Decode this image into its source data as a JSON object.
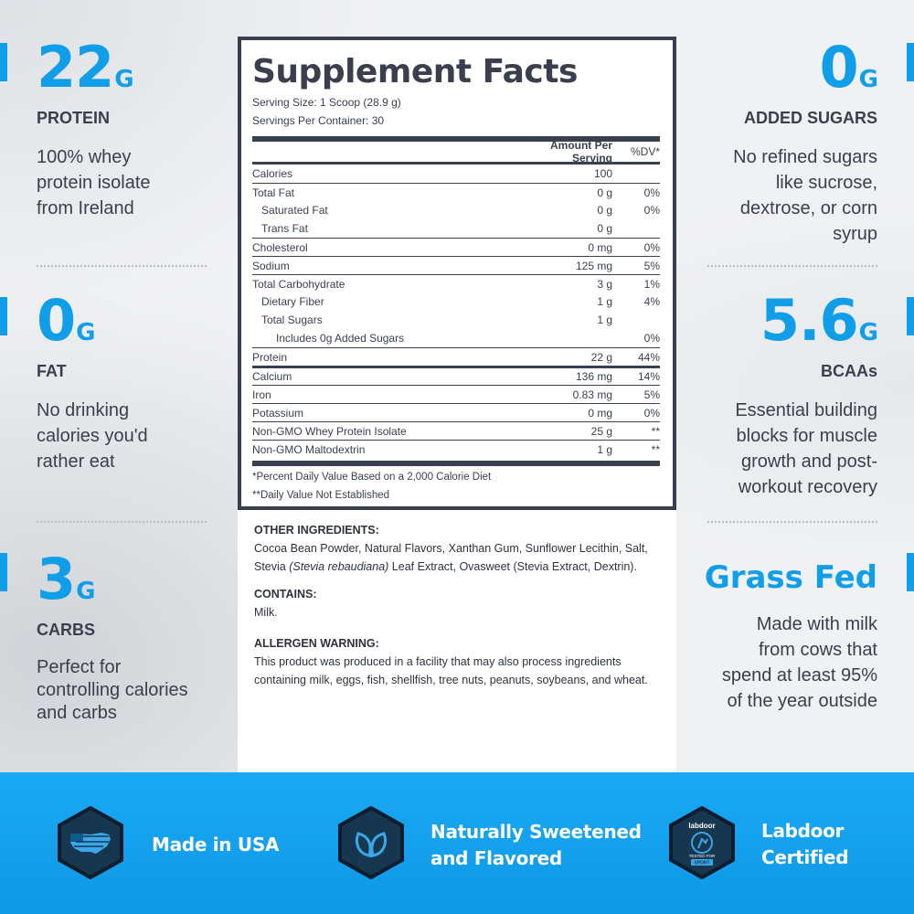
{
  "stats_left": [
    {
      "num": "22",
      "unit": "G",
      "label": "PROTEIN",
      "desc": [
        "100% whey",
        "protein isolate",
        "from Ireland"
      ]
    },
    {
      "num": "0",
      "unit": "G",
      "label": "FAT",
      "desc": [
        "No drinking",
        "calories you'd",
        "rather eat"
      ]
    },
    {
      "num": "3",
      "unit": "G",
      "label": "CARBS",
      "desc": [
        "Perfect for",
        "controlling calories",
        "and carbs"
      ]
    }
  ],
  "stats_right": [
    {
      "num": "0",
      "unit": "G",
      "label": "ADDED SUGARS",
      "desc": [
        "No refined sugars",
        "like sucrose,",
        "dextrose, or corn",
        "syrup"
      ]
    },
    {
      "num": "5.6",
      "unit": "G",
      "label": "BCAAs",
      "desc": [
        "Essential building",
        "blocks for muscle",
        "growth and post-",
        "workout recovery"
      ]
    },
    {
      "headline": "Grass Fed",
      "desc": [
        "Made with milk",
        "from cows that",
        "spend at least 95%",
        "of the year outside"
      ]
    }
  ],
  "facts": {
    "title": "Supplement Facts",
    "serving_size": "Serving Size: 1 Scoop (28.9 g)",
    "servings_per_container": "Servings Per Container: 30",
    "col_amount": "Amount Per Serving",
    "col_dv": "%DV*",
    "rows": [
      {
        "name": "Calories",
        "amount": "100",
        "dv": ""
      },
      {
        "name": "Total Fat",
        "amount": "0 g",
        "dv": "0%"
      },
      {
        "name": "Saturated Fat",
        "amount": "0 g",
        "dv": "0%"
      },
      {
        "name": "Trans Fat",
        "amount": "0 g",
        "dv": ""
      },
      {
        "name": "Cholesterol",
        "amount": "0 mg",
        "dv": "0%"
      },
      {
        "name": "Sodium",
        "amount": "125 mg",
        "dv": "5%"
      },
      {
        "name": "Total Carbohydrate",
        "amount": "3 g",
        "dv": "1%"
      },
      {
        "name": "Dietary Fiber",
        "amount": "1 g",
        "dv": "4%"
      },
      {
        "name": "Total Sugars",
        "amount": "1 g",
        "dv": ""
      },
      {
        "name": "Includes 0g Added Sugars",
        "amount": "",
        "dv": "0%"
      },
      {
        "name": "Protein",
        "amount": "22 g",
        "dv": "44%"
      },
      {
        "name": "Calcium",
        "amount": "136 mg",
        "dv": "14%"
      },
      {
        "name": "Iron",
        "amount": "0.83 mg",
        "dv": "5%"
      },
      {
        "name": "Potassium",
        "amount": "0 mg",
        "dv": "0%"
      },
      {
        "name": "Non-GMO Whey Protein Isolate",
        "amount": "25 g",
        "dv": "**"
      },
      {
        "name": "Non-GMO Maltodextrin",
        "amount": "1 g",
        "dv": "**"
      }
    ],
    "footnote_1": "*Percent Daily Value Based on a 2,000 Calorie Diet",
    "footnote_2": "**Daily Value Not Established"
  },
  "ingredients": {
    "other_head": "OTHER INGREDIENTS:",
    "other_text_a": "Cocoa Bean Powder, Natural Flavors, Xanthan Gum, Sunflower Lecithin, Salt, Stevia ",
    "other_text_italic": "(Stevia rebaudiana)",
    "other_text_b": " Leaf Extract, Ovasweet (Stevia Extract, Dextrin).",
    "contains_head": "CONTAINS:",
    "contains_text": "Milk.",
    "allergen_head": "ALLERGEN WARNING:",
    "allergen_text": "This product was produced in a facility that may also process ingredients containing milk, eggs, fish, shellfish, tree nuts, peanuts, soybeans, and wheat."
  },
  "badges": [
    {
      "icon": "usa-map-icon",
      "label_1": "Made in USA",
      "label_2": ""
    },
    {
      "icon": "leaf-icon",
      "label_1": "Naturally Sweetened",
      "label_2": "and Flavored"
    },
    {
      "icon": "labdoor-icon",
      "label_1": "Labdoor",
      "label_2": "Certified",
      "logo_text": "labdoor",
      "logo_sub": "TESTED FOR",
      "logo_sport": "SPORT"
    }
  ],
  "colors": {
    "accent": "#119ee8",
    "text": "#3a3f4e",
    "hex_fill": "#17364f",
    "bottom_bar": "#0e98e6"
  }
}
